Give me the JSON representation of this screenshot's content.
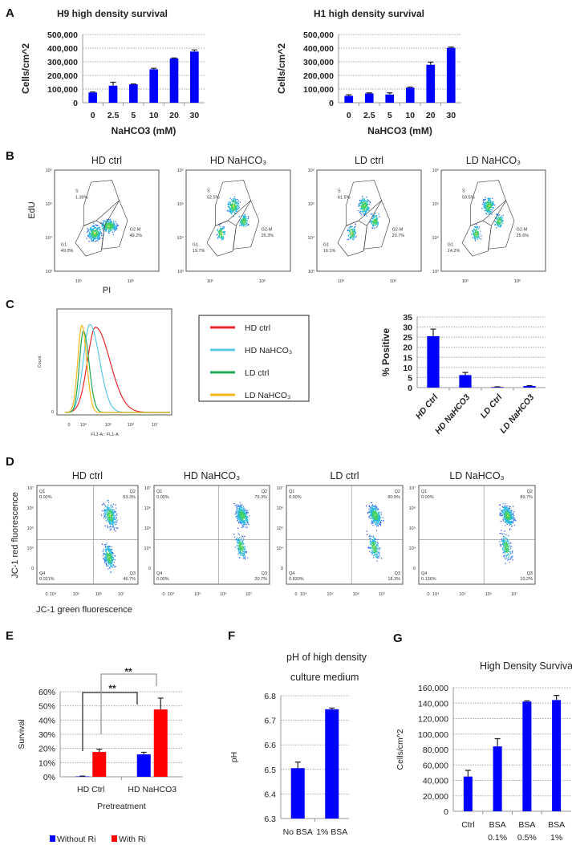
{
  "panel_labels": {
    "a": "A",
    "b": "B",
    "c": "C",
    "d": "D",
    "e": "E",
    "f": "F",
    "g": "G"
  },
  "colors": {
    "bar": "#0000ff",
    "with_ri": "#ff0000",
    "grid": "#c8c8c8"
  },
  "chart_data": [
    {
      "id": "A1",
      "type": "bar",
      "title": "H9 high density survival",
      "xlabel": "NaHCO3 (mM)",
      "ylabel": "Cells/cm^2",
      "categories": [
        "0",
        "2.5",
        "5",
        "10",
        "20",
        "30"
      ],
      "values": [
        75000,
        125000,
        135000,
        245000,
        325000,
        375000
      ],
      "errors": [
        4000,
        25000,
        3000,
        7000,
        3000,
        12000
      ],
      "ylim": [
        0,
        500000
      ],
      "yticks": [
        0,
        100000,
        200000,
        300000,
        400000,
        500000
      ],
      "ytick_labels": [
        "0",
        "100,000",
        "200,000",
        "300,000",
        "400,000",
        "500,000"
      ],
      "grid": true,
      "color": "#0000ff"
    },
    {
      "id": "A2",
      "type": "bar",
      "title": "H1 high density survival",
      "xlabel": "NaHCO3 (mM)",
      "ylabel": "Cells/cm^2",
      "categories": [
        "0",
        "2.5",
        "5",
        "10",
        "20",
        "30"
      ],
      "values": [
        50000,
        68000,
        60000,
        110000,
        278000,
        402000
      ],
      "errors": [
        8000,
        4000,
        12000,
        5000,
        20000,
        6000
      ],
      "ylim": [
        0,
        500000
      ],
      "yticks": [
        0,
        100000,
        200000,
        300000,
        400000,
        500000
      ],
      "ytick_labels": [
        "0",
        "100,000",
        "200,000",
        "300,000",
        "400,000",
        "500,000"
      ],
      "grid": true,
      "color": "#0000ff"
    },
    {
      "id": "C2",
      "type": "bar",
      "title": "",
      "xlabel": "",
      "ylabel": "% Positive",
      "categories": [
        "HD Ctrl",
        "HD NaHCO3",
        "LD Ctrl",
        "LD NaHCO3"
      ],
      "values": [
        25.5,
        6.2,
        0.3,
        0.8
      ],
      "errors": [
        3.5,
        1.3,
        0.1,
        0.2
      ],
      "ylim": [
        0,
        35
      ],
      "yticks": [
        0,
        5,
        10,
        15,
        20,
        25,
        30,
        35
      ],
      "ytick_labels": [
        "0",
        "5",
        "10",
        "15",
        "20",
        "25",
        "30",
        "35"
      ],
      "grid": true,
      "color": "#0000ff"
    },
    {
      "id": "E",
      "type": "bar",
      "title": "",
      "xlabel": "Pretreatment",
      "ylabel": "Survival",
      "categories": [
        "HD Ctrl",
        "HD NaHCO3"
      ],
      "series": [
        {
          "name": "Without Ri",
          "values": [
            0.3,
            15.8
          ],
          "errors": [
            0.2,
            1.5
          ],
          "color": "#0000ff"
        },
        {
          "name": "With Ri",
          "values": [
            17.5,
            47.5
          ],
          "errors": [
            2.0,
            8.0
          ],
          "color": "#ff0000"
        }
      ],
      "significance": [
        "**",
        "**"
      ],
      "ylim": [
        0,
        60
      ],
      "yticks": [
        0,
        10,
        20,
        30,
        40,
        50,
        60
      ],
      "ytick_labels": [
        "0%",
        "10%",
        "20%",
        "30%",
        "40%",
        "50%",
        "60%"
      ],
      "grid": true,
      "legend": "bottom"
    },
    {
      "id": "F",
      "type": "bar",
      "title_lines": [
        "pH of high density",
        "culture medium"
      ],
      "xlabel": "",
      "ylabel": "pH",
      "categories": [
        "No BSA",
        "1% BSA"
      ],
      "values": [
        6.505,
        6.745
      ],
      "errors": [
        0.025,
        0.005
      ],
      "ylim": [
        6.3,
        6.8
      ],
      "yticks": [
        6.3,
        6.4,
        6.5,
        6.6,
        6.7,
        6.8
      ],
      "ytick_labels": [
        "6.3",
        "6.4",
        "6.5",
        "6.6",
        "6.7",
        "6.8"
      ],
      "grid": true,
      "color": "#0000ff"
    },
    {
      "id": "G",
      "type": "bar",
      "title": "High Density Survival",
      "xlabel": "",
      "ylabel": "Cells/cm^2",
      "categories": [
        [
          "Ctrl"
        ],
        [
          "BSA",
          "0.1%"
        ],
        [
          "BSA",
          "0.5%"
        ],
        [
          "BSA",
          "1%"
        ]
      ],
      "values": [
        45000,
        84000,
        142000,
        144000
      ],
      "errors": [
        8000,
        10000,
        1000,
        6000
      ],
      "ylim": [
        0,
        160000
      ],
      "yticks": [
        0,
        20000,
        40000,
        60000,
        80000,
        100000,
        120000,
        140000,
        160000
      ],
      "ytick_labels": [
        "0",
        "20,000",
        "40,000",
        "60,000",
        "80,000",
        "100,000",
        "120,000",
        "140,000",
        "160,000"
      ],
      "grid": true,
      "color": "#0000ff"
    }
  ],
  "flow_b": {
    "ylabel": "EdU",
    "xlabel": "PI",
    "yticks": [
      "10³",
      "10⁴",
      "10⁵",
      "10⁶"
    ],
    "xticks": [
      "10⁵",
      "10⁶"
    ],
    "gate_labels": {
      "s": "S",
      "g1": "G1",
      "g2m": "G2-M"
    },
    "plots": [
      {
        "title": "HD ctrl",
        "s": "1.39%",
        "g1": "49.0%",
        "g2m": "49.2%"
      },
      {
        "title": "HD NaHCO₃",
        "s": "52.5%",
        "g1": "19.7%",
        "g2m": "26.3%"
      },
      {
        "title": "LD ctrl",
        "s": "61.5%",
        "g1": "16.1%",
        "g2m": "20.7%"
      },
      {
        "title": "LD NaHCO₃",
        "s": "59.5%",
        "g1": "14.2%",
        "g2m": "25.6%"
      }
    ]
  },
  "histogram_c": {
    "ylabel": "Count",
    "xlabel": "FL1-A:: FL1-A",
    "ytick": "0",
    "xticks": [
      "0",
      "10⁴",
      "10⁵",
      "10⁶",
      "10⁷"
    ],
    "legend": [
      {
        "label": "HD ctrl",
        "color": "#e8262b"
      },
      {
        "label": "HD NaHCO₃",
        "color": "#5bc8e8"
      },
      {
        "label": "LD ctrl",
        "color": "#1fa855"
      },
      {
        "label": "LD NaHCO₃",
        "color": "#f5b818"
      }
    ]
  },
  "flow_d": {
    "ylabel": "JC-1 red fluorescence",
    "xlabel": "JC-1 green fluorescence",
    "yticks": [
      "0",
      "10⁴",
      "10⁵",
      "10⁶",
      "10⁷"
    ],
    "xticks": [
      "0",
      "10⁴",
      "10⁵",
      "10⁶",
      "10⁷"
    ],
    "quadrant_names": [
      "Q1",
      "Q2",
      "Q3",
      "Q4"
    ],
    "plots": [
      {
        "title": "HD ctrl",
        "q1": "0.00%",
        "q2": "53.3%",
        "q3": "46.7%",
        "q4": "0.021%"
      },
      {
        "title": "HD NaHCO₃",
        "q1": "0.00%",
        "q2": "79.3%",
        "q3": "20.7%",
        "q4": "0.00%"
      },
      {
        "title": "LD ctrl",
        "q1": "0.00%",
        "q2": "80.9%",
        "q3": "18.3%",
        "q4": "0.830%"
      },
      {
        "title": "LD NaHCO₃",
        "q1": "0.00%",
        "q2": "89.7%",
        "q3": "10.2%",
        "q4": "0.136%"
      }
    ]
  }
}
